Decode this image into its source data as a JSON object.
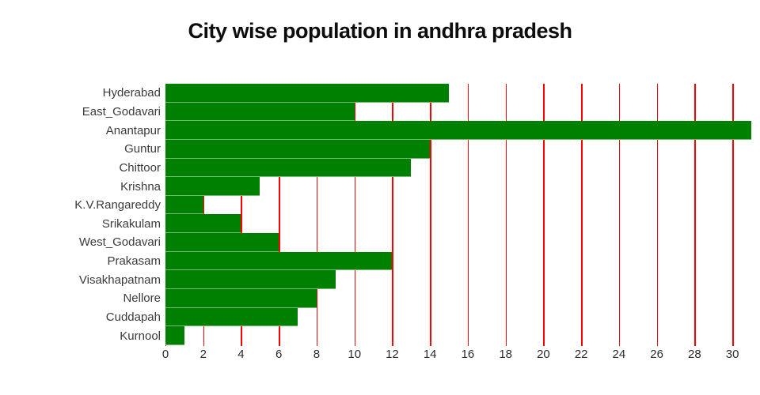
{
  "title": "City wise population in andhra pradesh",
  "chart_data": {
    "type": "bar",
    "orientation": "horizontal",
    "title": "City wise population in andhra pradesh",
    "categories": [
      "Hyderabad",
      "East_Godavari",
      "Anantapur",
      "Guntur",
      "Chittoor",
      "Krishna",
      "K.V.Rangareddy",
      "Srikakulam",
      "West_Godavari",
      "Prakasam",
      "Visakhapatnam",
      "Nellore",
      "Cuddapah",
      "Kurnool"
    ],
    "values": [
      15,
      10,
      31,
      14,
      13,
      5,
      2,
      4,
      6,
      12,
      9,
      8,
      7,
      1
    ],
    "xlabel": "",
    "ylabel": "",
    "x_ticks": [
      0,
      2,
      4,
      6,
      8,
      10,
      12,
      14,
      16,
      18,
      20,
      22,
      24,
      26,
      28,
      30
    ],
    "xlim": [
      0,
      31
    ],
    "grid": true,
    "legend_position": "none",
    "bar_color": "#008000",
    "gridline_color": "#ff0000",
    "title_color": "#0d0d0d",
    "tick_color": "#3b3b3b",
    "background_color": "#ffffff"
  }
}
